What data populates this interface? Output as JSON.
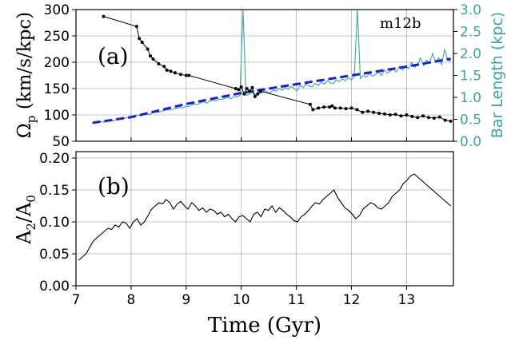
{
  "chart_data": [
    {
      "panel": "a",
      "type": "line",
      "panel_label": "(a)",
      "annotation": "m12b",
      "xlim": [
        7,
        13.85
      ],
      "ylabel_left_main": "Ω",
      "ylabel_left_sub": "p",
      "ylabel_left_unit": " (km/s/kpc)",
      "ylim_left": [
        50,
        300
      ],
      "yticks_left": [
        "50",
        "100",
        "150",
        "200",
        "250",
        "300"
      ],
      "ylabel_right": "Bar Length (kpc)",
      "ylim_right": [
        0,
        3
      ],
      "yticks_right": [
        "0.0",
        "0.5",
        "1.0",
        "1.5",
        "2.0",
        "2.5",
        "3.0"
      ],
      "grid": true,
      "colors": {
        "pattern_speed": "#000000",
        "bar_length": "#3aa6a0",
        "fit": "#1a1ae0"
      },
      "series": [
        {
          "axis": "left",
          "style": "line-markers",
          "points": [
            [
              7.5,
              287
            ],
            [
              8.1,
              268
            ],
            [
              8.15,
              245
            ],
            [
              8.2,
              238
            ],
            [
              8.3,
              225
            ],
            [
              8.35,
              212
            ],
            [
              8.4,
              206
            ],
            [
              8.5,
              197
            ],
            [
              8.6,
              192
            ],
            [
              8.65,
              185
            ],
            [
              8.72,
              183
            ],
            [
              8.8,
              180
            ],
            [
              8.9,
              177
            ],
            [
              9.0,
              175
            ],
            [
              9.05,
              175
            ],
            [
              9.9,
              150
            ],
            [
              9.95,
              148
            ],
            [
              10.0,
              153
            ],
            [
              10.05,
              140
            ],
            [
              10.1,
              150
            ],
            [
              10.15,
              145
            ],
            [
              10.2,
              152
            ],
            [
              10.25,
              135
            ],
            [
              10.3,
              140
            ],
            [
              10.35,
              145
            ],
            [
              11.25,
              120
            ],
            [
              11.3,
              110
            ],
            [
              11.4,
              113
            ],
            [
              11.5,
              115
            ],
            [
              11.6,
              115
            ],
            [
              11.65,
              117
            ],
            [
              11.7,
              113
            ],
            [
              11.8,
              113
            ],
            [
              11.9,
              112
            ],
            [
              12.0,
              113
            ],
            [
              12.1,
              110
            ],
            [
              12.2,
              105
            ],
            [
              12.3,
              107
            ],
            [
              12.4,
              105
            ],
            [
              12.5,
              103
            ],
            [
              12.6,
              102
            ],
            [
              12.7,
              100
            ],
            [
              12.8,
              101
            ],
            [
              12.9,
              98
            ],
            [
              13.0,
              100
            ],
            [
              13.1,
              97
            ],
            [
              13.2,
              95
            ],
            [
              13.3,
              98
            ],
            [
              13.4,
              95
            ],
            [
              13.5,
              94
            ],
            [
              13.6,
              96
            ],
            [
              13.7,
              90
            ],
            [
              13.8,
              88
            ]
          ]
        },
        {
          "axis": "right",
          "style": "line",
          "x_start": 7.3,
          "x_end": 13.8,
          "values": [
            0.4,
            0.42,
            0.44,
            0.45,
            0.43,
            0.47,
            0.48,
            0.46,
            0.5,
            0.52,
            0.51,
            0.53,
            0.55,
            0.54,
            0.57,
            0.6,
            0.58,
            0.62,
            0.63,
            0.61,
            0.65,
            0.67,
            0.66,
            0.69,
            0.7,
            0.72,
            0.71,
            0.74,
            0.75,
            0.77,
            0.76,
            0.8,
            0.79,
            0.83,
            0.85,
            0.84,
            0.88,
            0.9,
            0.87,
            0.92,
            0.94,
            0.91,
            0.96,
            0.95,
            0.98,
            1.0,
            0.97,
            1.02,
            1.01,
            1.05,
            3.0,
            1.04,
            1.08,
            1.1,
            1.06,
            1.12,
            1.09,
            1.15,
            1.13,
            1.1,
            1.17,
            1.14,
            1.2,
            1.16,
            1.22,
            1.18,
            1.25,
            1.2,
            1.15,
            1.28,
            1.22,
            1.3,
            1.26,
            1.24,
            1.32,
            1.27,
            1.35,
            1.3,
            1.38,
            1.33,
            1.31,
            1.4,
            1.36,
            1.42,
            1.38,
            1.45,
            1.4,
            1.48,
            3.0,
            1.43,
            1.5,
            1.46,
            1.55,
            1.48,
            1.52,
            1.58,
            1.5,
            1.62,
            1.55,
            1.6,
            1.65,
            1.58,
            1.7,
            1.62,
            1.72,
            1.65,
            1.8,
            1.68,
            1.75,
            1.9,
            1.72,
            1.85,
            1.78,
            2.0,
            1.8,
            1.9,
            1.75,
            2.1,
            1.85,
            1.82
          ]
        },
        {
          "axis": "right",
          "style": "dashed-fit",
          "points": [
            [
              7.3,
              0.42
            ],
            [
              8.0,
              0.55
            ],
            [
              9.0,
              0.85
            ],
            [
              10.0,
              1.1
            ],
            [
              11.0,
              1.3
            ],
            [
              12.0,
              1.5
            ],
            [
              13.0,
              1.7
            ],
            [
              13.8,
              1.88
            ]
          ]
        }
      ]
    },
    {
      "panel": "b",
      "type": "line",
      "panel_label": "(b)",
      "xlim": [
        7,
        13.85
      ],
      "xticks": [
        "7",
        "8",
        "9",
        "10",
        "11",
        "12",
        "13"
      ],
      "xlabel": "Time (Gyr)",
      "ylabel_main": "A",
      "ylabel_sub1": "2",
      "ylabel_mid": "/A",
      "ylabel_sub2": "0",
      "ylim": [
        0,
        0.21
      ],
      "yticks": [
        "0.00",
        "0.05",
        "0.10",
        "0.15",
        "0.20"
      ],
      "grid": true,
      "colors": {
        "line": "#000000"
      },
      "series": [
        {
          "x_start": 7.05,
          "x_end": 13.8,
          "values": [
            0.04,
            0.045,
            0.05,
            0.06,
            0.07,
            0.075,
            0.08,
            0.085,
            0.09,
            0.088,
            0.095,
            0.092,
            0.1,
            0.098,
            0.09,
            0.1,
            0.105,
            0.095,
            0.1,
            0.11,
            0.12,
            0.125,
            0.13,
            0.128,
            0.135,
            0.13,
            0.12,
            0.128,
            0.132,
            0.125,
            0.12,
            0.13,
            0.125,
            0.118,
            0.122,
            0.115,
            0.12,
            0.118,
            0.112,
            0.115,
            0.108,
            0.112,
            0.105,
            0.1,
            0.108,
            0.11,
            0.105,
            0.1,
            0.112,
            0.115,
            0.108,
            0.12,
            0.118,
            0.125,
            0.115,
            0.122,
            0.118,
            0.112,
            0.108,
            0.102,
            0.1,
            0.108,
            0.112,
            0.118,
            0.125,
            0.13,
            0.128,
            0.135,
            0.14,
            0.145,
            0.15,
            0.138,
            0.13,
            0.122,
            0.118,
            0.112,
            0.105,
            0.11,
            0.12,
            0.125,
            0.13,
            0.128,
            0.122,
            0.12,
            0.125,
            0.13,
            0.14,
            0.145,
            0.15,
            0.16,
            0.165,
            0.172,
            0.175,
            0.17,
            0.165,
            0.16,
            0.155,
            0.15,
            0.145,
            0.14,
            0.135,
            0.13,
            0.125
          ]
        }
      ]
    }
  ]
}
